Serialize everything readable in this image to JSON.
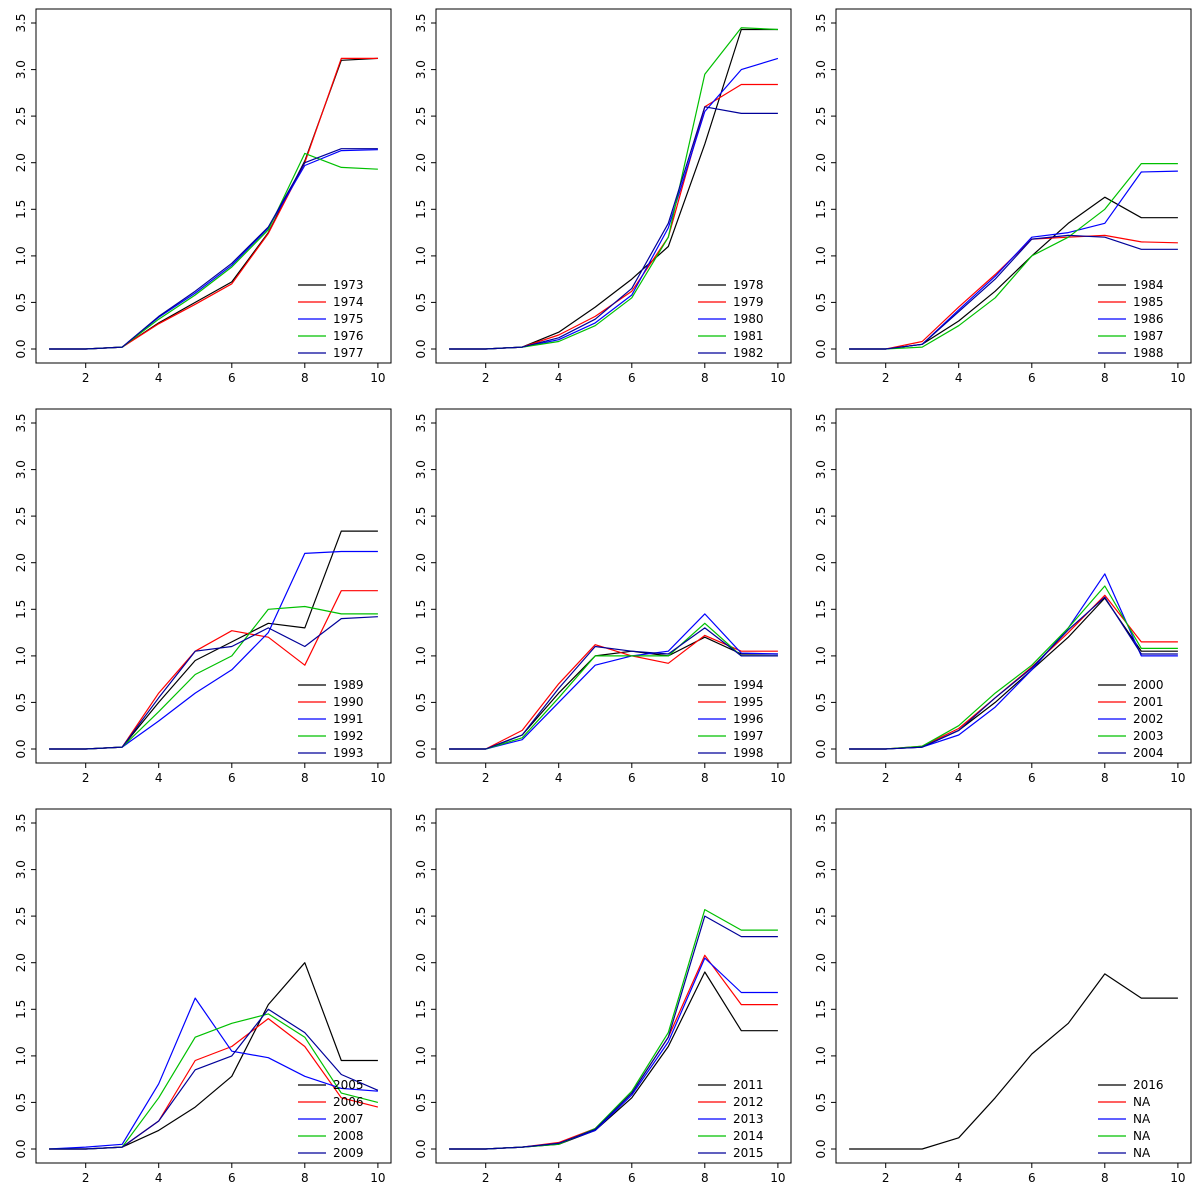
{
  "figure": {
    "background": "#ffffff",
    "rows": 3,
    "cols": 3
  },
  "palette": [
    "#000000",
    "#ff0000",
    "#0000ff",
    "#00c000",
    "#000099"
  ],
  "axes": {
    "xlim": [
      1,
      10
    ],
    "ylim": [
      0,
      3.5
    ],
    "x_ticks": [
      2,
      4,
      6,
      8,
      10
    ],
    "x_tick_labels": [
      "2",
      "4",
      "6",
      "8",
      "10"
    ],
    "y_ticks": [
      0,
      0.5,
      1,
      1.5,
      2,
      2.5,
      3,
      3.5
    ],
    "y_tick_labels": [
      "0.0",
      "0.5",
      "1.0",
      "1.5",
      "2.0",
      "2.5",
      "3.0",
      "3.5"
    ],
    "grid": false,
    "legend_position": "bottom-right"
  },
  "chart_data": [
    {
      "type": "line",
      "x": [
        1,
        2,
        3,
        4,
        5,
        6,
        7,
        8,
        9,
        10
      ],
      "title": "",
      "xlabel": "",
      "ylabel": "",
      "series": [
        {
          "name": "1973",
          "values": [
            0,
            0,
            0.02,
            0.28,
            0.5,
            0.72,
            1.25,
            2.02,
            3.1,
            3.12
          ]
        },
        {
          "name": "1974",
          "values": [
            0,
            0,
            0.02,
            0.27,
            0.48,
            0.7,
            1.24,
            2.0,
            3.12,
            3.12
          ]
        },
        {
          "name": "1975",
          "values": [
            0,
            0,
            0.02,
            0.34,
            0.6,
            0.9,
            1.3,
            1.97,
            2.13,
            2.14
          ]
        },
        {
          "name": "1976",
          "values": [
            0,
            0,
            0.02,
            0.32,
            0.58,
            0.88,
            1.28,
            2.1,
            1.95,
            1.93
          ]
        },
        {
          "name": "1977",
          "values": [
            0,
            0,
            0.02,
            0.35,
            0.62,
            0.92,
            1.31,
            2.0,
            2.15,
            2.15
          ]
        }
      ]
    },
    {
      "type": "line",
      "x": [
        1,
        2,
        3,
        4,
        5,
        6,
        7,
        8,
        9,
        10
      ],
      "title": "",
      "xlabel": "",
      "ylabel": "",
      "series": [
        {
          "name": "1978",
          "values": [
            0,
            0,
            0.02,
            0.18,
            0.45,
            0.75,
            1.1,
            2.2,
            3.43,
            3.43
          ]
        },
        {
          "name": "1979",
          "values": [
            0,
            0,
            0.02,
            0.15,
            0.35,
            0.62,
            1.2,
            2.6,
            2.84,
            2.84
          ]
        },
        {
          "name": "1980",
          "values": [
            0,
            0,
            0.02,
            0.1,
            0.28,
            0.58,
            1.3,
            2.55,
            3.0,
            3.12
          ]
        },
        {
          "name": "1981",
          "values": [
            0,
            0,
            0.02,
            0.08,
            0.25,
            0.55,
            1.2,
            2.95,
            3.45,
            3.43
          ]
        },
        {
          "name": "1982",
          "values": [
            0,
            0,
            0.02,
            0.12,
            0.32,
            0.65,
            1.35,
            2.6,
            2.53,
            2.53
          ]
        }
      ]
    },
    {
      "type": "line",
      "x": [
        1,
        2,
        3,
        4,
        5,
        6,
        7,
        8,
        9,
        10
      ],
      "title": "",
      "xlabel": "",
      "ylabel": "",
      "series": [
        {
          "name": "1984",
          "values": [
            0,
            0,
            0.05,
            0.3,
            0.62,
            1.0,
            1.35,
            1.63,
            1.41,
            1.41
          ]
        },
        {
          "name": "1985",
          "values": [
            0,
            0,
            0.08,
            0.45,
            0.8,
            1.18,
            1.2,
            1.22,
            1.15,
            1.14
          ]
        },
        {
          "name": "1986",
          "values": [
            0,
            0,
            0.05,
            0.42,
            0.78,
            1.2,
            1.25,
            1.35,
            1.9,
            1.91
          ]
        },
        {
          "name": "1987",
          "values": [
            0,
            0,
            0.02,
            0.25,
            0.55,
            1.0,
            1.2,
            1.5,
            1.99,
            1.99
          ]
        },
        {
          "name": "1988",
          "values": [
            0,
            0,
            0.05,
            0.4,
            0.75,
            1.18,
            1.22,
            1.2,
            1.07,
            1.07
          ]
        }
      ]
    },
    {
      "type": "line",
      "x": [
        1,
        2,
        3,
        4,
        5,
        6,
        7,
        8,
        9,
        10
      ],
      "title": "",
      "xlabel": "",
      "ylabel": "",
      "series": [
        {
          "name": "1989",
          "values": [
            0,
            0,
            0.02,
            0.5,
            0.95,
            1.15,
            1.35,
            1.3,
            2.34,
            2.34
          ]
        },
        {
          "name": "1990",
          "values": [
            0,
            0,
            0.02,
            0.6,
            1.05,
            1.27,
            1.2,
            0.9,
            1.7,
            1.7
          ]
        },
        {
          "name": "1991",
          "values": [
            0,
            0,
            0.02,
            0.3,
            0.6,
            0.85,
            1.25,
            2.1,
            2.12,
            2.12
          ]
        },
        {
          "name": "1992",
          "values": [
            0,
            0,
            0.02,
            0.4,
            0.8,
            1.0,
            1.5,
            1.53,
            1.45,
            1.45
          ]
        },
        {
          "name": "1993",
          "values": [
            0,
            0,
            0.02,
            0.55,
            1.05,
            1.1,
            1.3,
            1.1,
            1.4,
            1.42
          ]
        }
      ]
    },
    {
      "type": "line",
      "x": [
        1,
        2,
        3,
        4,
        5,
        6,
        7,
        8,
        9,
        10
      ],
      "title": "",
      "xlabel": "",
      "ylabel": "",
      "series": [
        {
          "name": "1994",
          "values": [
            0,
            0,
            0.15,
            0.6,
            1.0,
            1.05,
            1.0,
            1.2,
            1.02,
            1.02
          ]
        },
        {
          "name": "1995",
          "values": [
            0,
            0,
            0.2,
            0.7,
            1.12,
            1.0,
            0.92,
            1.22,
            1.05,
            1.05
          ]
        },
        {
          "name": "1996",
          "values": [
            0,
            0,
            0.1,
            0.5,
            0.9,
            1.0,
            1.05,
            1.45,
            1.03,
            1.02
          ]
        },
        {
          "name": "1997",
          "values": [
            0,
            0,
            0.12,
            0.55,
            1.0,
            1.0,
            1.0,
            1.35,
            1.0,
            1.0
          ]
        },
        {
          "name": "1998",
          "values": [
            0,
            0,
            0.15,
            0.65,
            1.1,
            1.05,
            1.02,
            1.3,
            1.0,
            1.0
          ]
        }
      ]
    },
    {
      "type": "line",
      "x": [
        1,
        2,
        3,
        4,
        5,
        6,
        7,
        8,
        9,
        10
      ],
      "title": "",
      "xlabel": "",
      "ylabel": "",
      "series": [
        {
          "name": "2000",
          "values": [
            0,
            0,
            0.02,
            0.2,
            0.5,
            0.85,
            1.2,
            1.62,
            1.05,
            1.05
          ]
        },
        {
          "name": "2001",
          "values": [
            0,
            0,
            0.03,
            0.22,
            0.55,
            0.88,
            1.25,
            1.65,
            1.15,
            1.15
          ]
        },
        {
          "name": "2002",
          "values": [
            0,
            0,
            0.02,
            0.15,
            0.45,
            0.85,
            1.3,
            1.88,
            1.0,
            1.0
          ]
        },
        {
          "name": "2003",
          "values": [
            0,
            0,
            0.03,
            0.25,
            0.6,
            0.9,
            1.3,
            1.75,
            1.08,
            1.08
          ]
        },
        {
          "name": "2004",
          "values": [
            0,
            0,
            0.02,
            0.2,
            0.55,
            0.87,
            1.28,
            1.63,
            1.02,
            1.02
          ]
        }
      ]
    },
    {
      "type": "line",
      "x": [
        1,
        2,
        3,
        4,
        5,
        6,
        7,
        8,
        9,
        10
      ],
      "title": "",
      "xlabel": "",
      "ylabel": "",
      "series": [
        {
          "name": "2005",
          "values": [
            0,
            0,
            0.02,
            0.2,
            0.45,
            0.78,
            1.55,
            2.0,
            0.95,
            0.95
          ]
        },
        {
          "name": "2006",
          "values": [
            0,
            0,
            0.02,
            0.3,
            0.95,
            1.1,
            1.4,
            1.1,
            0.55,
            0.45
          ]
        },
        {
          "name": "2007",
          "values": [
            0,
            0.02,
            0.05,
            0.7,
            1.62,
            1.05,
            0.98,
            0.78,
            0.65,
            0.62
          ]
        },
        {
          "name": "2008",
          "values": [
            0,
            0,
            0.02,
            0.55,
            1.2,
            1.35,
            1.45,
            1.2,
            0.6,
            0.5
          ]
        },
        {
          "name": "2009",
          "values": [
            0,
            0,
            0.02,
            0.3,
            0.85,
            1.0,
            1.5,
            1.25,
            0.8,
            0.63
          ]
        }
      ]
    },
    {
      "type": "line",
      "x": [
        1,
        2,
        3,
        4,
        5,
        6,
        7,
        8,
        9,
        10
      ],
      "title": "",
      "xlabel": "",
      "ylabel": "",
      "series": [
        {
          "name": "2011",
          "values": [
            0,
            0,
            0.02,
            0.05,
            0.2,
            0.55,
            1.1,
            1.9,
            1.27,
            1.27
          ]
        },
        {
          "name": "2012",
          "values": [
            0,
            0,
            0.02,
            0.07,
            0.22,
            0.6,
            1.2,
            2.08,
            1.55,
            1.55
          ]
        },
        {
          "name": "2013",
          "values": [
            0,
            0,
            0.02,
            0.06,
            0.2,
            0.58,
            1.15,
            2.05,
            1.68,
            1.68
          ]
        },
        {
          "name": "2014",
          "values": [
            0,
            0,
            0.02,
            0.05,
            0.22,
            0.62,
            1.25,
            2.57,
            2.35,
            2.35
          ]
        },
        {
          "name": "2015",
          "values": [
            0,
            0,
            0.02,
            0.06,
            0.21,
            0.6,
            1.2,
            2.5,
            2.28,
            2.28
          ]
        }
      ]
    },
    {
      "type": "line",
      "x": [
        1,
        2,
        3,
        4,
        5,
        6,
        7,
        8,
        9,
        10
      ],
      "title": "",
      "xlabel": "",
      "ylabel": "",
      "series": [
        {
          "name": "2016",
          "values": [
            0,
            0,
            0,
            0.12,
            0.55,
            1.02,
            1.35,
            1.88,
            1.62,
            1.62
          ]
        },
        {
          "name": "NA",
          "values": null
        },
        {
          "name": "NA",
          "values": null
        },
        {
          "name": "NA",
          "values": null
        },
        {
          "name": "NA",
          "values": null
        }
      ]
    }
  ],
  "layout_note": "3x3 grid of R-style base-graphics line plots, shared axes 1-10 x and 0.0-3.5 y, legend of 5 yearly series per panel"
}
